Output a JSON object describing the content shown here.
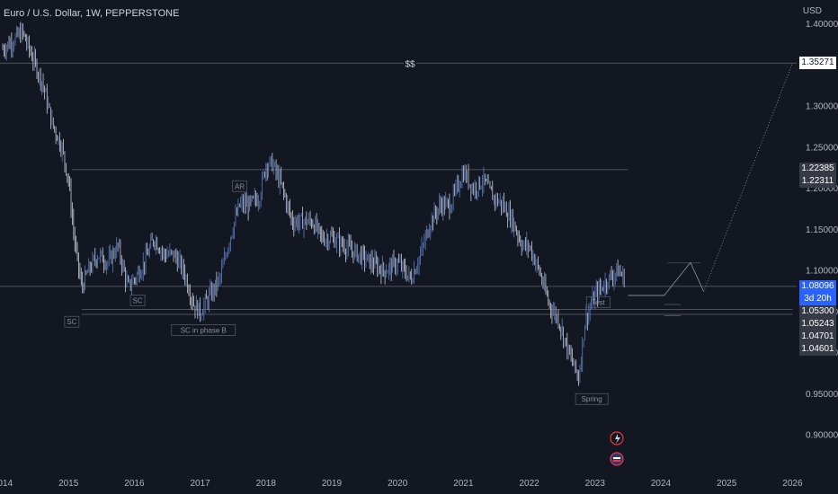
{
  "title": "Euro / U.S. Dollar, 1W, PEPPERSTONE",
  "currency": "USD",
  "chart_data": {
    "type": "line",
    "symbol": "EURUSD",
    "x_ticks": [
      "2014",
      "2015",
      "2016",
      "2017",
      "2018",
      "2019",
      "2020",
      "2021",
      "2022",
      "2023",
      "2024",
      "2025",
      "2026"
    ],
    "y_ticks": [
      "1.40000",
      "1.30000",
      "1.25000",
      "1.20000",
      "1.15000",
      "1.10000",
      "1.05000",
      "1.00000",
      "0.95000",
      "0.90000"
    ],
    "ylim": [
      0.885,
      1.41
    ],
    "series": [
      {
        "x": [
          2014.0,
          2014.15,
          2014.3,
          2014.45,
          2014.6,
          2014.75,
          2014.9,
          2015.0,
          2015.1,
          2015.2,
          2015.3,
          2015.45,
          2015.6,
          2015.75,
          2015.9,
          2016.0,
          2016.15,
          2016.3,
          2016.45,
          2016.6,
          2016.75,
          2016.9,
          2017.0,
          2017.15,
          2017.3,
          2017.45,
          2017.6,
          2017.75,
          2017.9,
          2018.0,
          2018.1,
          2018.25,
          2018.4,
          2018.55,
          2018.7,
          2018.85,
          2019.0,
          2019.2,
          2019.4,
          2019.6,
          2019.8,
          2020.0,
          2020.2,
          2020.35,
          2020.5,
          2020.65,
          2020.8,
          2021.0,
          2021.15,
          2021.3,
          2021.45,
          2021.6,
          2021.75,
          2021.9,
          2022.0,
          2022.15,
          2022.3,
          2022.45,
          2022.6,
          2022.75,
          2022.85,
          2023.0,
          2023.1,
          2023.2,
          2023.35,
          2023.45
        ],
        "values": [
          1.37,
          1.38,
          1.39,
          1.36,
          1.33,
          1.28,
          1.25,
          1.21,
          1.13,
          1.08,
          1.1,
          1.12,
          1.11,
          1.13,
          1.08,
          1.09,
          1.11,
          1.14,
          1.12,
          1.12,
          1.1,
          1.06,
          1.05,
          1.07,
          1.09,
          1.14,
          1.18,
          1.18,
          1.19,
          1.23,
          1.23,
          1.2,
          1.16,
          1.16,
          1.16,
          1.14,
          1.14,
          1.13,
          1.12,
          1.11,
          1.1,
          1.11,
          1.09,
          1.12,
          1.16,
          1.18,
          1.18,
          1.22,
          1.2,
          1.21,
          1.19,
          1.18,
          1.16,
          1.13,
          1.13,
          1.1,
          1.06,
          1.04,
          1.0,
          0.97,
          1.04,
          1.07,
          1.08,
          1.09,
          1.1,
          1.09
        ]
      }
    ],
    "projection_line": {
      "x": [
        2023.5,
        2024.05,
        2024.45,
        2024.65,
        2026.0
      ],
      "values": [
        1.07,
        1.07,
        1.11,
        1.075,
        1.3527
      ]
    },
    "levels": [
      {
        "value": 1.3527,
        "label": "$$"
      },
      {
        "value": 1.2231
      },
      {
        "value": 1.081
      },
      {
        "value": 1.053
      },
      {
        "value": 1.047
      }
    ],
    "annotations": [
      {
        "label": "SC",
        "x": 2015.05,
        "value": 1.038
      },
      {
        "label": "SC",
        "x": 2016.05,
        "value": 1.064
      },
      {
        "label": "AR",
        "x": 2017.6,
        "value": 1.203
      },
      {
        "label": "SC in phase B",
        "x": 2017.05,
        "value": 1.028
      },
      {
        "label": "Test",
        "x": 2023.05,
        "value": 1.062
      },
      {
        "label": "Spring",
        "x": 2022.95,
        "value": 0.944
      }
    ],
    "price_tags": [
      {
        "value": 1.35271,
        "text": "1.35271",
        "bg": "#ffffff",
        "fg": "#131722"
      },
      {
        "value": 1.22385,
        "text": "1.22385",
        "bg": "#363a45",
        "fg": "#ffffff"
      },
      {
        "value": 1.22311,
        "text": "1.22311",
        "bg": "#363a45",
        "fg": "#ffffff"
      },
      {
        "value": 1.08096,
        "text": "1.08096",
        "bg": "#2962ff",
        "fg": "#ffffff"
      },
      {
        "value": 1.0665,
        "text": "3d 20h",
        "bg": "#2962ff",
        "fg": "#ffffff"
      },
      {
        "value": 1.053,
        "text": "1.05300",
        "bg": "#363a45",
        "fg": "#ffffff"
      },
      {
        "value": 1.05243,
        "text": "1.05243",
        "bg": "#363a45",
        "fg": "#ffffff"
      },
      {
        "value": 1.04701,
        "text": "1.04701",
        "bg": "#363a45",
        "fg": "#ffffff"
      },
      {
        "value": 1.04601,
        "text": "1.04601",
        "bg": "#363a45",
        "fg": "#ffffff"
      }
    ],
    "colors": {
      "up": "#5b7cc0",
      "down": "#c7cbd6",
      "grid": "#363a45",
      "axis_text": "#b2b5be",
      "event_red": "#f23645"
    },
    "icons": [
      "lightning-icon",
      "flag-icon"
    ]
  }
}
